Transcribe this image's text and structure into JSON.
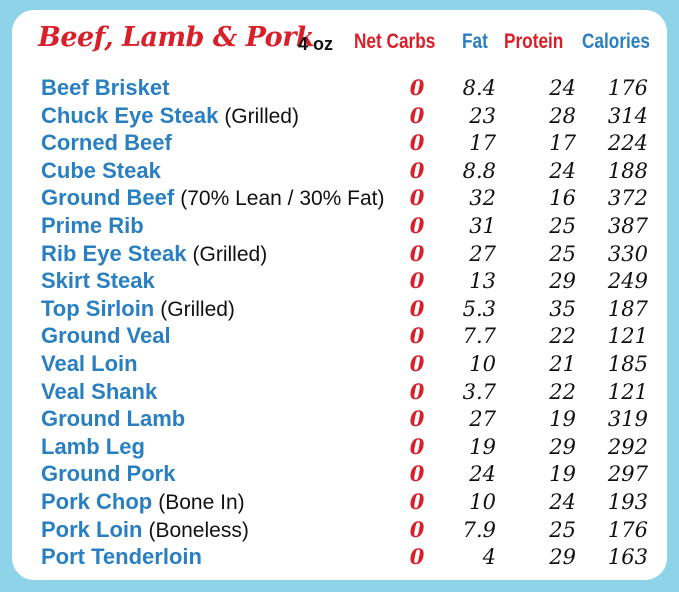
{
  "title": "Beef, Lamb & Pork",
  "unit": "4 oz",
  "columns": {
    "net_carbs": "Net Carbs",
    "fat": "Fat",
    "protein": "Protein",
    "calories": "Calories"
  },
  "colors": {
    "background": "#8fd3e8",
    "red": "#d9202a",
    "blue": "#2a7fc1",
    "text": "#111111"
  },
  "rows": [
    {
      "name": "Beef Brisket",
      "note": "",
      "net_carbs": "0",
      "fat": "8.4",
      "protein": "24",
      "calories": "176"
    },
    {
      "name": "Chuck Eye Steak",
      "note": "(Grilled)",
      "net_carbs": "0",
      "fat": "23",
      "protein": "28",
      "calories": "314"
    },
    {
      "name": "Corned Beef",
      "note": "",
      "net_carbs": "0",
      "fat": "17",
      "protein": "17",
      "calories": "224"
    },
    {
      "name": "Cube Steak",
      "note": "",
      "net_carbs": "0",
      "fat": "8.8",
      "protein": "24",
      "calories": "188"
    },
    {
      "name": "Ground Beef",
      "note": "(70% Lean / 30% Fat)",
      "net_carbs": "0",
      "fat": "32",
      "protein": "16",
      "calories": "372"
    },
    {
      "name": "Prime Rib",
      "note": "",
      "net_carbs": "0",
      "fat": "31",
      "protein": "25",
      "calories": "387"
    },
    {
      "name": "Rib Eye Steak",
      "note": "(Grilled)",
      "net_carbs": "0",
      "fat": "27",
      "protein": "25",
      "calories": "330"
    },
    {
      "name": "Skirt Steak",
      "note": "",
      "net_carbs": "0",
      "fat": "13",
      "protein": "29",
      "calories": "249"
    },
    {
      "name": "Top Sirloin",
      "note": "(Grilled)",
      "net_carbs": "0",
      "fat": "5.3",
      "protein": "35",
      "calories": "187"
    },
    {
      "name": "Ground Veal",
      "note": "",
      "net_carbs": "0",
      "fat": "7.7",
      "protein": "22",
      "calories": "121"
    },
    {
      "name": "Veal Loin",
      "note": "",
      "net_carbs": "0",
      "fat": "10",
      "protein": "21",
      "calories": "185"
    },
    {
      "name": "Veal Shank",
      "note": "",
      "net_carbs": "0",
      "fat": "3.7",
      "protein": "22",
      "calories": "121"
    },
    {
      "name": "Ground Lamb",
      "note": "",
      "net_carbs": "0",
      "fat": "27",
      "protein": "19",
      "calories": "319"
    },
    {
      "name": "Lamb Leg",
      "note": "",
      "net_carbs": "0",
      "fat": "19",
      "protein": "29",
      "calories": "292"
    },
    {
      "name": "Ground Pork",
      "note": "",
      "net_carbs": "0",
      "fat": "24",
      "protein": "19",
      "calories": "297"
    },
    {
      "name": "Pork Chop",
      "note": "(Bone In)",
      "net_carbs": "0",
      "fat": "10",
      "protein": "24",
      "calories": "193"
    },
    {
      "name": "Pork Loin",
      "note": "(Boneless)",
      "net_carbs": "0",
      "fat": "7.9",
      "protein": "25",
      "calories": "176"
    },
    {
      "name": "Port Tenderloin",
      "note": "",
      "net_carbs": "0",
      "fat": "4",
      "protein": "29",
      "calories": "163"
    }
  ]
}
